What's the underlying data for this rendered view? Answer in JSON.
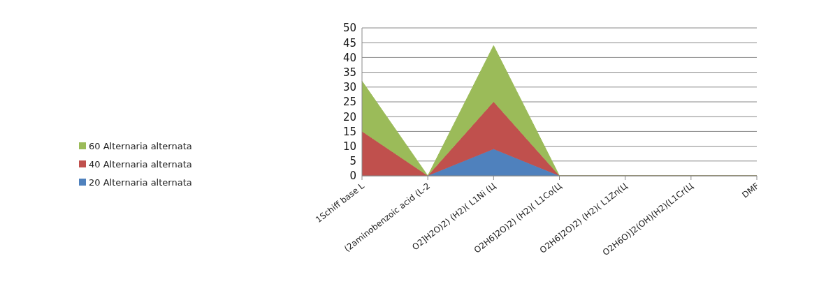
{
  "chart_data": {
    "type": "area",
    "stacked": true,
    "categories": [
      "1Schiff base L",
      "(2aminobenzoic acid (L-2",
      "O2]H2O)2) (H2)( L1Ni (Ц",
      "O2H6]2O)2) (H2)( L1Co(Ц",
      "O2H6]2O)2) (H2)( L1Zn(Ц",
      "O2H6O)]2(OH)(H2)(L1Cr(Ц",
      "DMF"
    ],
    "series": [
      {
        "name": "20 Alternaria alternata",
        "color": "#4f81bd",
        "values": [
          0,
          0,
          9,
          0,
          0,
          0,
          0
        ]
      },
      {
        "name": "40 Alternaria alternata",
        "color": "#c0504d",
        "values": [
          15,
          0,
          16,
          0,
          0,
          0,
          0
        ]
      },
      {
        "name": "60 Alternaria alternata",
        "color": "#9bbb59",
        "values": [
          17,
          0,
          19,
          0,
          0,
          0,
          0
        ]
      }
    ],
    "ylim": [
      0,
      50
    ],
    "yticks": [
      0,
      5,
      10,
      15,
      20,
      25,
      30,
      35,
      40,
      45,
      50
    ],
    "grid": "y",
    "legend": "left"
  }
}
